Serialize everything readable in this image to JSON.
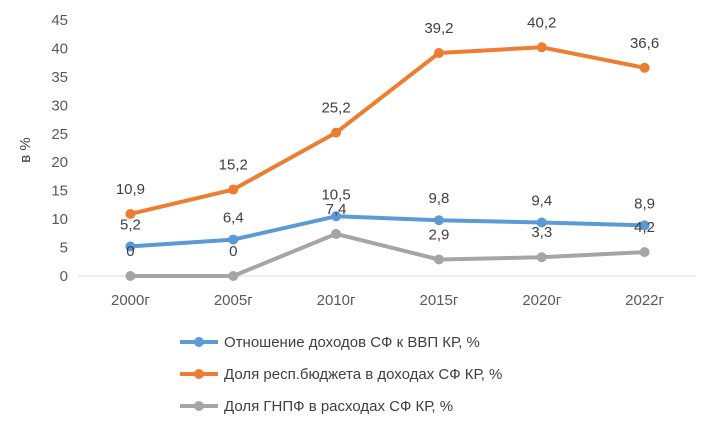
{
  "chart_data": {
    "type": "line",
    "title": "",
    "xlabel": "",
    "ylabel": "в %",
    "ylim": [
      0,
      45
    ],
    "yticks": [
      "0",
      "5",
      "10",
      "15",
      "20",
      "25",
      "30",
      "35",
      "40",
      "45"
    ],
    "categories": [
      "2000г",
      "2005г",
      "2010г",
      "2015г",
      "2020г",
      "2022г"
    ],
    "grid": false,
    "legend_position": "bottom",
    "series": [
      {
        "name": "Отношение доходов СФ к ВВП КР, %",
        "color": "#5B9BD5",
        "values": [
          5.2,
          6.4,
          10.5,
          9.8,
          9.4,
          8.9
        ],
        "labels": [
          "5,2",
          "6,4",
          "10,5",
          "9,8",
          "9,4",
          "8,9"
        ]
      },
      {
        "name": "Доля респ.бюджета в доходах СФ КР, %",
        "color": "#ED7D31",
        "values": [
          10.9,
          15.2,
          25.2,
          39.2,
          40.2,
          36.6
        ],
        "labels": [
          "10,9",
          "15,2",
          "25,2",
          "39,2",
          "40,2",
          "36,6"
        ]
      },
      {
        "name": "Доля ГНПФ  в расходах СФ КР, %",
        "color": "#A5A5A5",
        "values": [
          0,
          0,
          7.4,
          2.9,
          3.3,
          4.2
        ],
        "labels": [
          "0",
          "0",
          "7,4",
          "2,9",
          "3,3",
          "4,2"
        ]
      }
    ]
  }
}
